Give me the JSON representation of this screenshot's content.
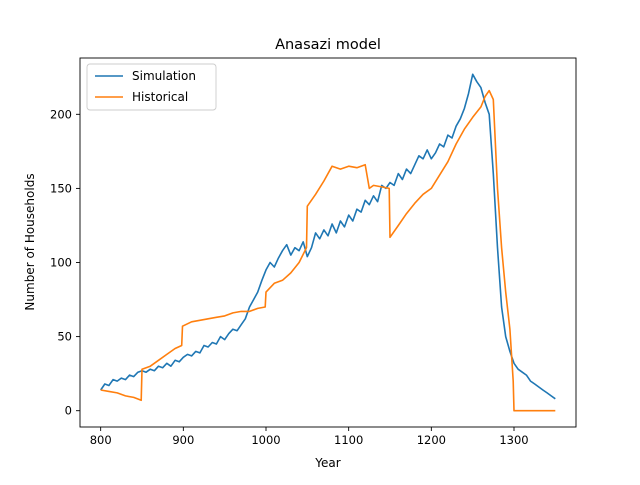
{
  "chart_data": {
    "type": "line",
    "title": "Anasazi model",
    "xlabel": "Year",
    "ylabel": "Number of Households",
    "xlim": [
      775,
      1375
    ],
    "ylim": [
      -11,
      238
    ],
    "xticks": [
      800,
      900,
      1000,
      1100,
      1200,
      1300
    ],
    "yticks": [
      0,
      50,
      100,
      150,
      200
    ],
    "grid": false,
    "legend_position": "top-left",
    "series": [
      {
        "name": "Simulation",
        "color": "#1f77b4",
        "x": [
          800,
          805,
          810,
          815,
          820,
          825,
          830,
          835,
          840,
          845,
          850,
          855,
          860,
          865,
          870,
          875,
          880,
          885,
          890,
          895,
          900,
          905,
          910,
          915,
          920,
          925,
          930,
          935,
          940,
          945,
          950,
          955,
          960,
          965,
          970,
          975,
          980,
          985,
          990,
          995,
          1000,
          1005,
          1010,
          1015,
          1020,
          1025,
          1030,
          1035,
          1040,
          1045,
          1050,
          1055,
          1060,
          1065,
          1070,
          1075,
          1080,
          1085,
          1090,
          1095,
          1100,
          1105,
          1110,
          1115,
          1120,
          1125,
          1130,
          1135,
          1140,
          1145,
          1150,
          1155,
          1160,
          1165,
          1170,
          1175,
          1180,
          1185,
          1190,
          1195,
          1200,
          1205,
          1210,
          1215,
          1220,
          1225,
          1230,
          1235,
          1240,
          1245,
          1250,
          1255,
          1260,
          1265,
          1270,
          1275,
          1280,
          1285,
          1290,
          1295,
          1300,
          1305,
          1310,
          1315,
          1320,
          1325,
          1330,
          1335,
          1340,
          1345,
          1350
        ],
        "values": [
          14,
          18,
          17,
          21,
          20,
          22,
          21,
          24,
          23,
          26,
          27,
          26,
          28,
          27,
          30,
          29,
          32,
          30,
          34,
          33,
          36,
          38,
          37,
          40,
          39,
          44,
          43,
          46,
          45,
          50,
          48,
          52,
          55,
          54,
          58,
          62,
          70,
          75,
          80,
          88,
          95,
          100,
          97,
          103,
          108,
          112,
          105,
          110,
          108,
          114,
          104,
          110,
          120,
          116,
          122,
          118,
          126,
          120,
          128,
          124,
          132,
          128,
          136,
          134,
          142,
          139,
          145,
          141,
          152,
          150,
          154,
          152,
          160,
          156,
          163,
          160,
          166,
          172,
          170,
          176,
          170,
          174,
          180,
          178,
          186,
          184,
          192,
          197,
          204,
          214,
          227,
          222,
          218,
          208,
          200,
          160,
          110,
          70,
          50,
          40,
          32,
          28,
          26,
          24,
          20,
          18,
          16,
          14,
          12,
          10,
          8
        ]
      },
      {
        "name": "Historical",
        "color": "#ff7f0e",
        "x": [
          800,
          810,
          820,
          830,
          840,
          849,
          850,
          860,
          870,
          880,
          890,
          898,
          899,
          910,
          920,
          930,
          940,
          950,
          960,
          970,
          980,
          990,
          999,
          1000,
          1010,
          1020,
          1030,
          1040,
          1049,
          1050,
          1060,
          1070,
          1080,
          1090,
          1100,
          1110,
          1120,
          1125,
          1130,
          1140,
          1149,
          1150,
          1160,
          1170,
          1180,
          1190,
          1200,
          1210,
          1220,
          1230,
          1240,
          1250,
          1260,
          1265,
          1270,
          1275,
          1280,
          1285,
          1290,
          1295,
          1299,
          1300,
          1310,
          1320,
          1330,
          1340,
          1350
        ],
        "values": [
          14,
          13,
          12,
          10,
          9,
          7,
          28,
          30,
          34,
          38,
          42,
          44,
          57,
          60,
          61,
          62,
          63,
          64,
          66,
          67,
          67,
          69,
          70,
          80,
          86,
          88,
          93,
          100,
          110,
          138,
          146,
          155,
          165,
          163,
          165,
          164,
          166,
          150,
          152,
          151,
          150,
          117,
          125,
          133,
          140,
          146,
          150,
          159,
          168,
          180,
          190,
          198,
          205,
          212,
          216,
          210,
          150,
          110,
          80,
          55,
          20,
          0,
          0,
          0,
          0,
          0,
          0
        ]
      }
    ]
  }
}
